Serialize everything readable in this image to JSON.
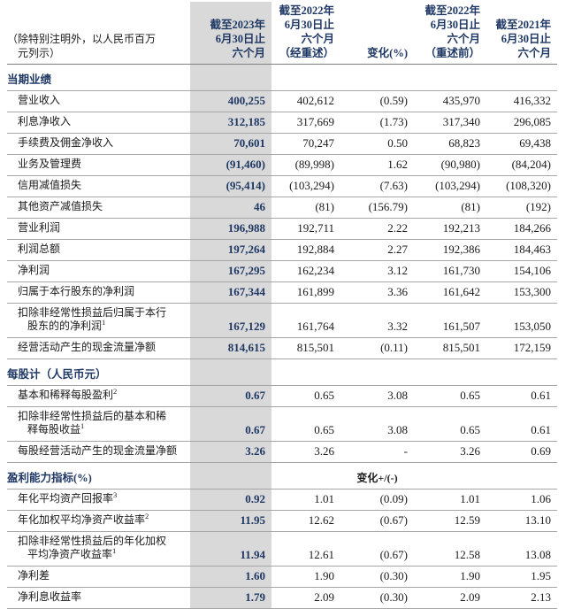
{
  "colors": {
    "accent_navy": "#1f3864",
    "highlight_band": "#d9d9d9"
  },
  "header": {
    "label_note": "（除特别注明外，以人民币百万\n元列示）",
    "col_2023": "截至2023年\n6月30日止\n六个月",
    "col_2022_restated": "截至2022年\n6月30日止\n六个月\n（经重述）",
    "col_change": "变化(%)",
    "col_2022_before": "截至2022年\n6月30日止\n六个月\n（重述前）",
    "col_2021": "截至2021年\n6月30日止\n六个月"
  },
  "sections": [
    {
      "title": "当期业绩",
      "rows": [
        {
          "label": "营业收入",
          "values": [
            "400,255",
            "402,612",
            "(0.59)",
            "435,970",
            "416,332"
          ]
        },
        {
          "label": "利息净收入",
          "values": [
            "312,185",
            "317,669",
            "(1.73)",
            "317,340",
            "296,085"
          ]
        },
        {
          "label": "手续费及佣金净收入",
          "values": [
            "70,601",
            "70,247",
            "0.50",
            "68,823",
            "69,438"
          ]
        },
        {
          "label": "业务及管理费",
          "values": [
            "(91,460)",
            "(89,998)",
            "1.62",
            "(90,980)",
            "(84,204)"
          ]
        },
        {
          "label": "信用减值损失",
          "values": [
            "(95,414)",
            "(103,294)",
            "(7.63)",
            "(103,294)",
            "(108,320)"
          ]
        },
        {
          "label": "其他资产减值损失",
          "values": [
            "46",
            "(81)",
            "(156.79)",
            "(81)",
            "(192)"
          ]
        },
        {
          "label": "营业利润",
          "values": [
            "196,988",
            "192,711",
            "2.22",
            "192,213",
            "184,266"
          ]
        },
        {
          "label": "利润总额",
          "values": [
            "197,264",
            "192,884",
            "2.27",
            "192,386",
            "184,463"
          ]
        },
        {
          "label": "净利润",
          "values": [
            "167,295",
            "162,234",
            "3.12",
            "161,730",
            "154,106"
          ]
        },
        {
          "label": "归属于本行股东的净利润",
          "values": [
            "167,344",
            "161,899",
            "3.36",
            "161,642",
            "153,300"
          ]
        },
        {
          "label": "扣除非经常性损益后归属于本行\n股东的的净利润",
          "sup": "1",
          "values": [
            "167,129",
            "161,764",
            "3.32",
            "161,507",
            "153,050"
          ]
        },
        {
          "label": "经营活动产生的现金流量净额",
          "values": [
            "814,615",
            "815,501",
            "(0.11)",
            "815,501",
            "172,159"
          ]
        }
      ]
    },
    {
      "title": "每股计（人民币元）",
      "rows": [
        {
          "label": "基本和稀释每股盈利",
          "sup": "2",
          "values": [
            "0.67",
            "0.65",
            "3.08",
            "0.65",
            "0.61"
          ]
        },
        {
          "label": "扣除非经常性损益后的基本和稀\n释每股收益",
          "sup": "1",
          "values": [
            "0.67",
            "0.65",
            "3.08",
            "0.65",
            "0.61"
          ]
        },
        {
          "label": "每股经营活动产生的现金流量净额",
          "values": [
            "3.26",
            "3.26",
            "-",
            "3.26",
            "0.69"
          ]
        }
      ]
    },
    {
      "title": "盈利能力指标(%)",
      "note": "变化+/(-)",
      "rows": [
        {
          "label": "年化平均资产回报率",
          "sup": "3",
          "values": [
            "0.92",
            "1.01",
            "(0.09)",
            "1.01",
            "1.06"
          ]
        },
        {
          "label": "年化加权平均净资产收益率",
          "sup": "2",
          "values": [
            "11.95",
            "12.62",
            "(0.67)",
            "12.59",
            "13.10"
          ]
        },
        {
          "label": "扣除非经常性损益后的年化加权\n平均净资产收益率",
          "sup": "1",
          "values": [
            "11.94",
            "12.61",
            "(0.67)",
            "12.58",
            "13.08"
          ]
        },
        {
          "label": "净利差",
          "values": [
            "1.60",
            "1.90",
            "(0.30)",
            "1.90",
            "1.95"
          ]
        },
        {
          "label": "净利息收益率",
          "values": [
            "1.79",
            "2.09",
            "(0.30)",
            "2.09",
            "2.13"
          ]
        }
      ]
    }
  ]
}
